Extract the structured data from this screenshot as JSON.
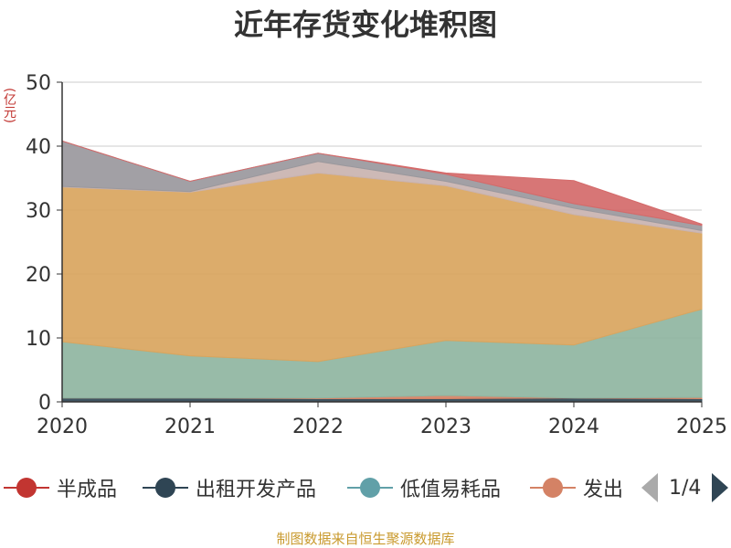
{
  "title": "近年存货变化堆积图",
  "unit_label": "(亿元)",
  "source_note": "制图数据来自恒生聚源数据库",
  "legend": {
    "items": [
      {
        "label": "半成品",
        "color": "#c23531"
      },
      {
        "label": "出租开发产品",
        "color": "#2f4554"
      },
      {
        "label": "低值易耗品",
        "color": "#61a0a8"
      },
      {
        "label": "发出",
        "color": "#d48265"
      }
    ],
    "page": "1/4"
  },
  "chart_data": {
    "type": "area",
    "stacked": true,
    "title": "近年存货变化堆积图",
    "ylabel": "(亿元)",
    "xlabel": "",
    "x": [
      "2020",
      "2021",
      "2022",
      "2023",
      "2024",
      "2025"
    ],
    "ylim": [
      0,
      50
    ],
    "yticks": [
      0,
      10,
      20,
      30,
      40,
      50
    ],
    "grid": true,
    "series": [
      {
        "name": "出租开发产品",
        "color": "#2f4554",
        "values": [
          0.6,
          0.6,
          0.5,
          0.5,
          0.6,
          0.5
        ]
      },
      {
        "name": "发出",
        "color": "#d48265",
        "values": [
          0.0,
          0.0,
          0.1,
          0.5,
          0.0,
          0.2
        ]
      },
      {
        "name": "",
        "color": "#8fb5a1",
        "values": [
          8.8,
          6.6,
          5.7,
          8.6,
          8.3,
          13.8
        ]
      },
      {
        "name": "",
        "color": "#d9a55e",
        "values": [
          24.2,
          25.6,
          29.5,
          24.2,
          20.4,
          11.9
        ]
      },
      {
        "name": "",
        "color": "#c9b3b0",
        "values": [
          0.1,
          0.1,
          1.8,
          0.7,
          1.0,
          0.4
        ]
      },
      {
        "name": "",
        "color": "#9a989d",
        "values": [
          7.1,
          1.6,
          1.3,
          1.1,
          0.7,
          0.8
        ]
      },
      {
        "name": "半成品",
        "color": "#d46a6a",
        "values": [
          0.0,
          0.0,
          0.0,
          0.2,
          3.6,
          0.2
        ]
      }
    ]
  }
}
